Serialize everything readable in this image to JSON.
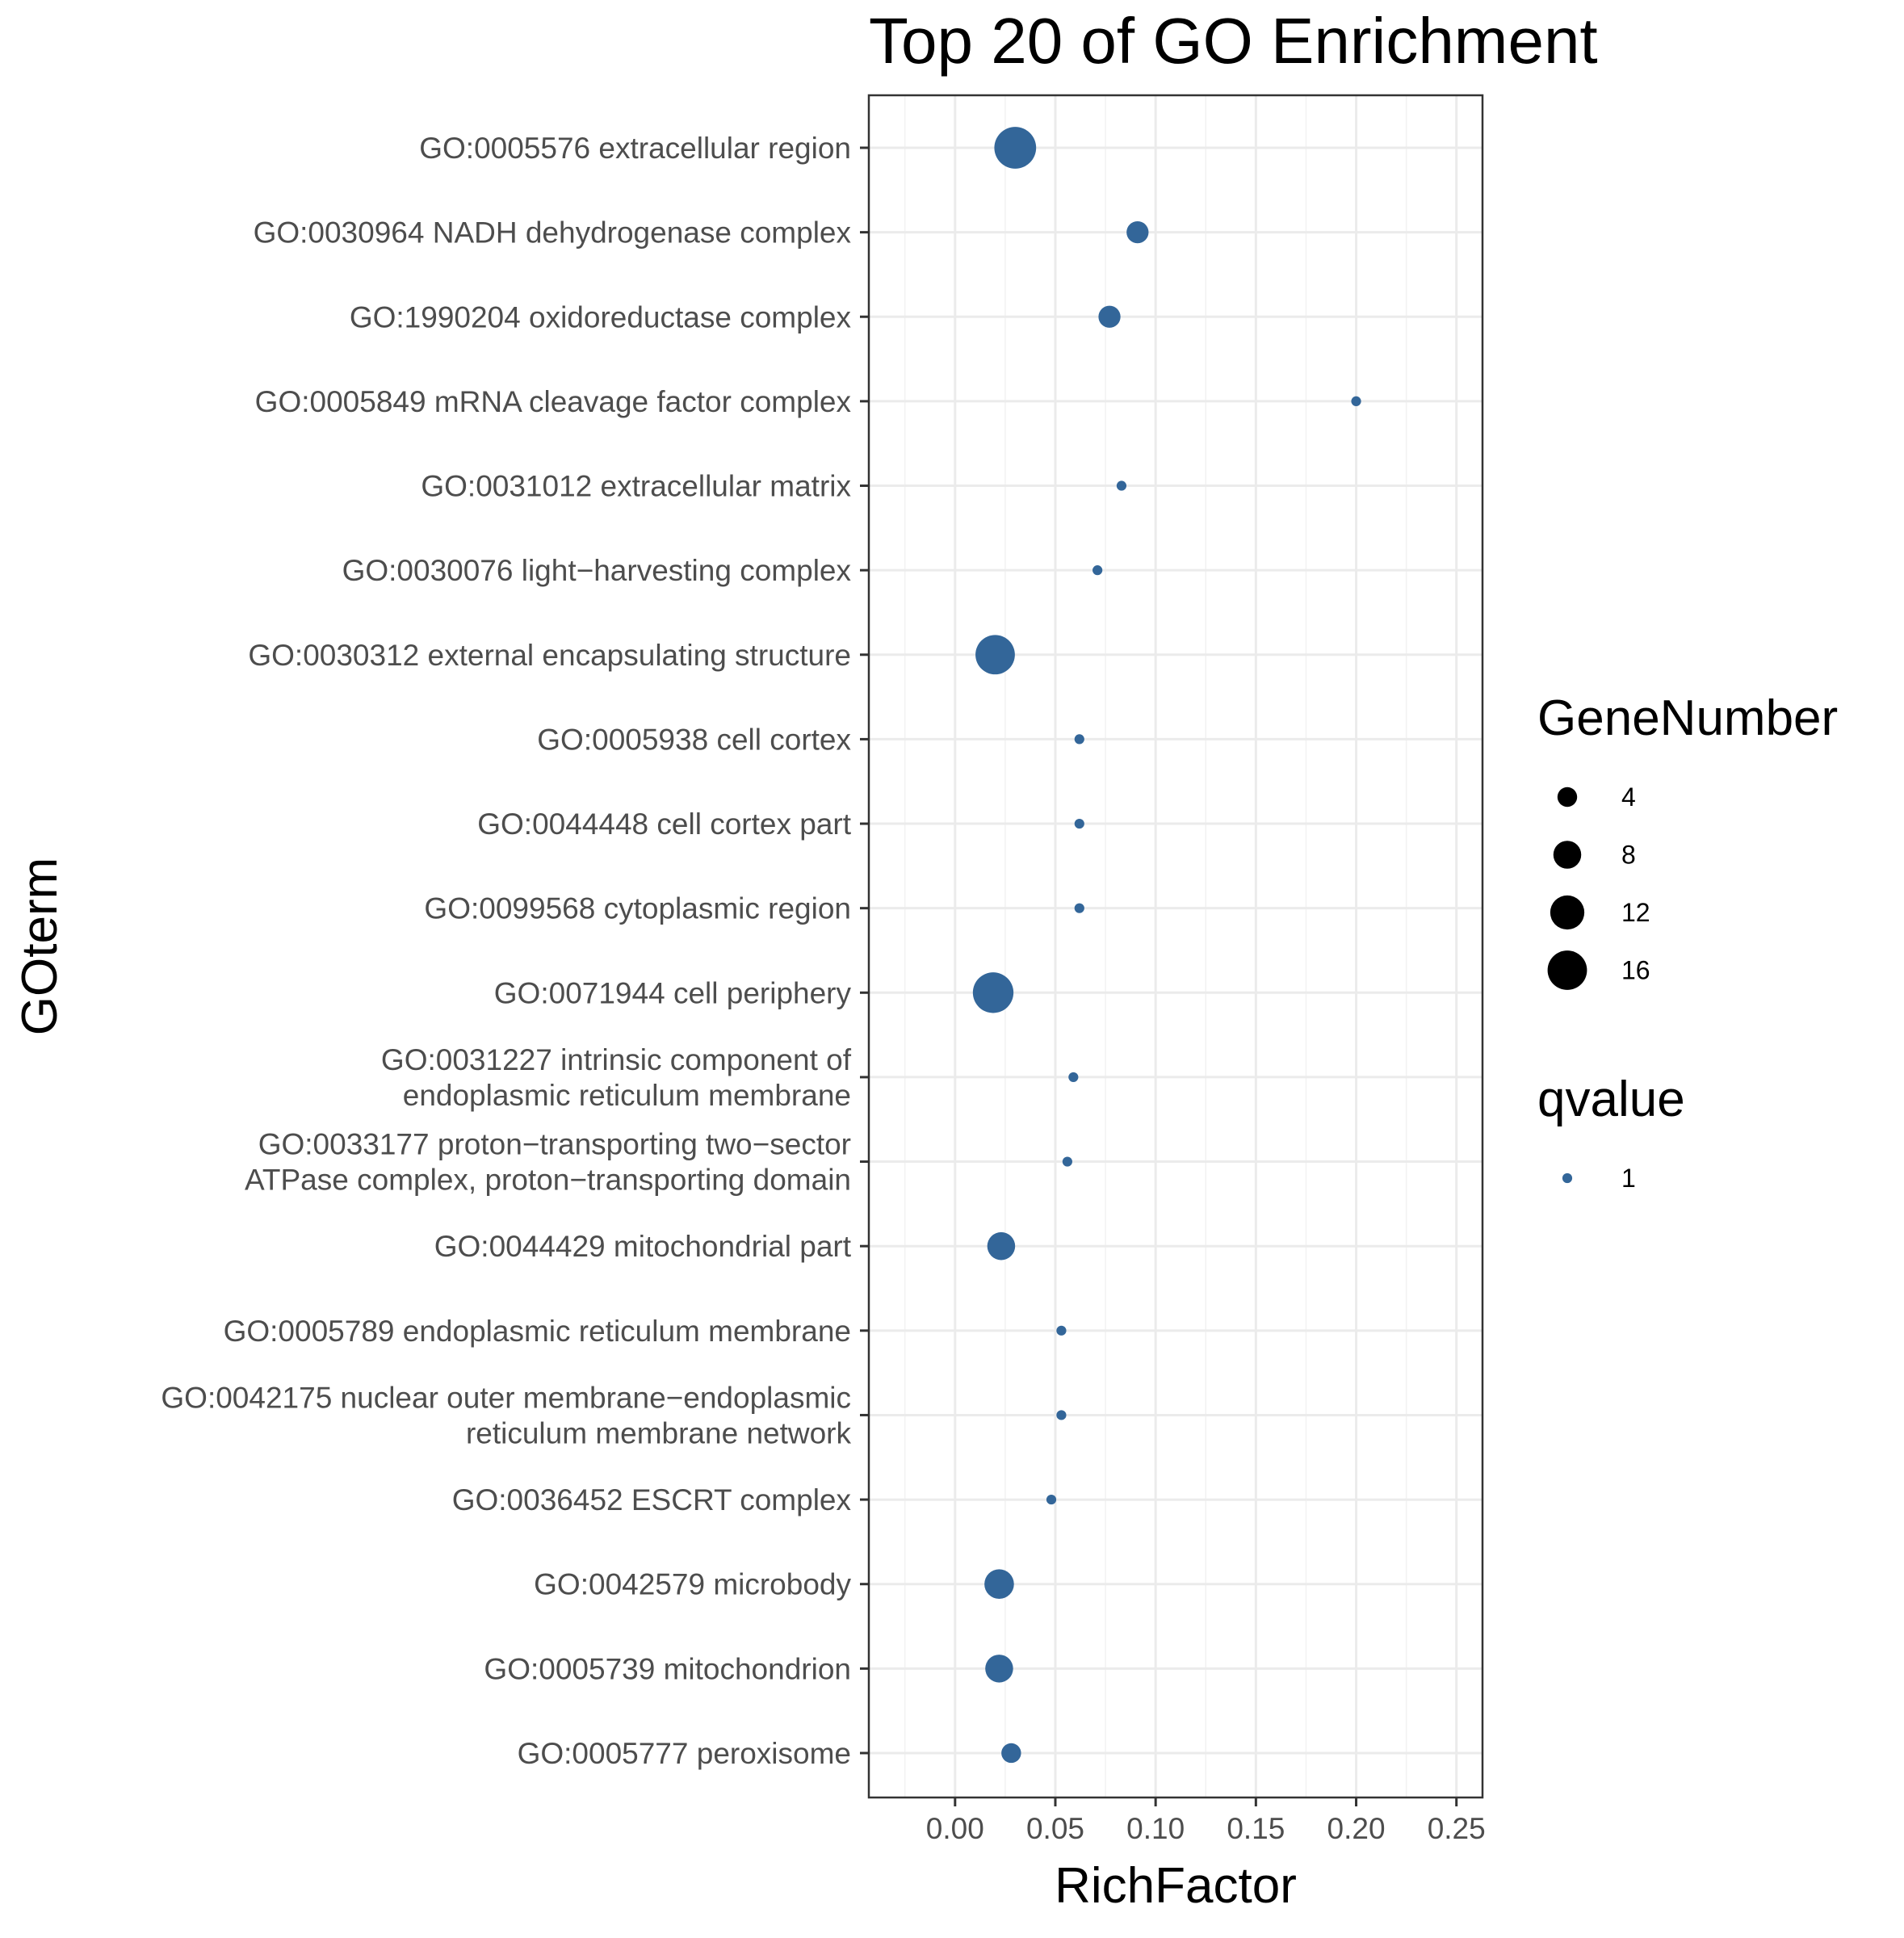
{
  "chart_data": {
    "type": "scatter",
    "title": "Top 20 of GO Enrichment",
    "xlabel": "RichFactor",
    "ylabel": "GOterm",
    "xlim": [
      -0.043,
      0.263
    ],
    "xticks": [
      "0.00",
      "0.05",
      "0.10",
      "0.15",
      "0.20",
      "0.25"
    ],
    "xtick_values": [
      0.0,
      0.05,
      0.1,
      0.15,
      0.2,
      0.25
    ],
    "grid": true,
    "point_color": "#336699",
    "categories": [
      [
        "GO:0005576 extracellular region"
      ],
      [
        "GO:0030964 NADH dehydrogenase complex"
      ],
      [
        "GO:1990204 oxidoreductase complex"
      ],
      [
        "GO:0005849 mRNA cleavage factor complex"
      ],
      [
        "GO:0031012 extracellular matrix"
      ],
      [
        "GO:0030076 light−harvesting complex"
      ],
      [
        "GO:0030312 external encapsulating structure"
      ],
      [
        "GO:0005938 cell cortex"
      ],
      [
        "GO:0044448 cell cortex part"
      ],
      [
        "GO:0099568 cytoplasmic region"
      ],
      [
        "GO:0071944 cell periphery"
      ],
      [
        "GO:0031227 intrinsic component of",
        "endoplasmic reticulum membrane"
      ],
      [
        "GO:0033177 proton−transporting two−sector",
        "ATPase complex, proton−transporting domain"
      ],
      [
        "GO:0044429 mitochondrial part"
      ],
      [
        "GO:0005789 endoplasmic reticulum membrane"
      ],
      [
        "GO:0042175 nuclear outer membrane−endoplasmic",
        "reticulum membrane network"
      ],
      [
        "GO:0036452 ESCRT complex"
      ],
      [
        "GO:0042579 microbody"
      ],
      [
        "GO:0005739 mitochondrion"
      ],
      [
        "GO:0005777 peroxisome"
      ]
    ],
    "rich_factor": [
      0.03,
      0.091,
      0.077,
      0.2,
      0.083,
      0.071,
      0.02,
      0.062,
      0.062,
      0.062,
      0.019,
      0.059,
      0.056,
      0.023,
      0.053,
      0.053,
      0.048,
      0.022,
      0.022,
      0.028
    ],
    "gene_number": [
      18,
      5,
      5,
      1,
      1,
      1,
      16,
      1,
      1,
      1,
      17,
      1,
      1,
      8,
      1,
      1,
      1,
      9,
      8,
      4
    ],
    "qvalue": [
      1,
      1,
      1,
      1,
      1,
      1,
      1,
      1,
      1,
      1,
      1,
      1,
      1,
      1,
      1,
      1,
      1,
      1,
      1,
      1
    ],
    "legend": {
      "size_title": "GeneNumber",
      "size_labels": [
        "4",
        "8",
        "12",
        "16"
      ],
      "size_values": [
        4,
        8,
        12,
        16
      ],
      "color_title": "qvalue",
      "color_labels": [
        "1"
      ],
      "color_values": [
        1
      ]
    }
  }
}
